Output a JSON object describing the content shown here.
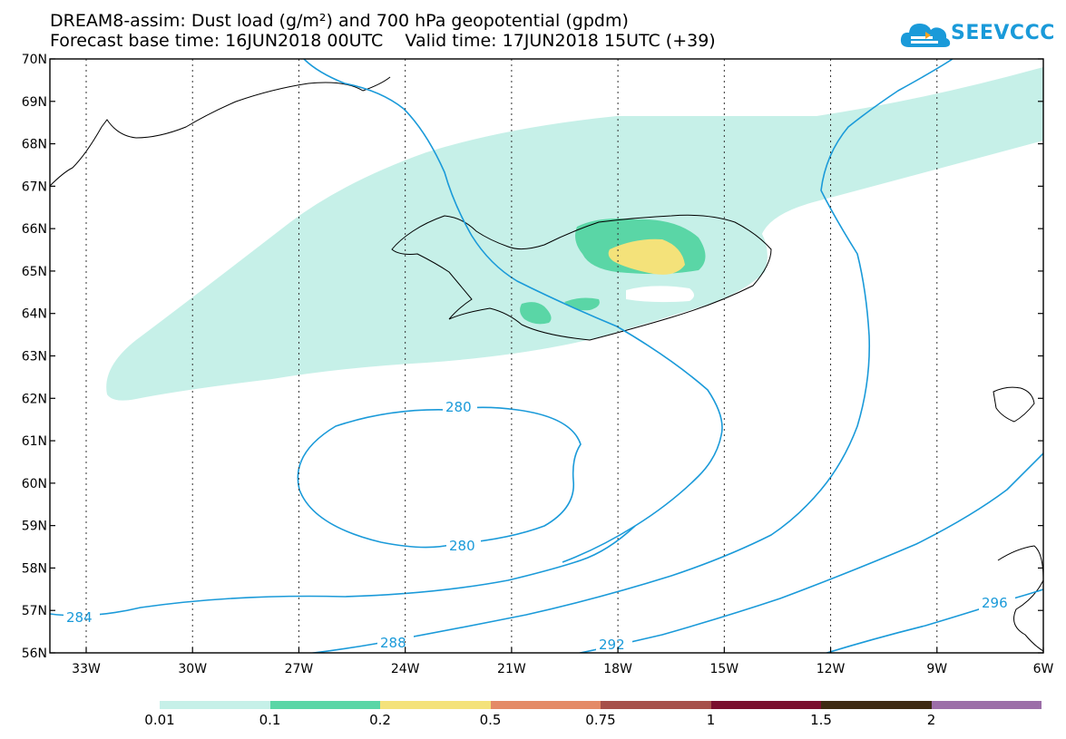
{
  "title": {
    "line1": "DREAM8-assim: Dust load (g/m²) and 700 hPa geopotential (gpdm)",
    "line2": "Forecast base time: 16JUN2018 00UTC    Valid time: 17JUN2018 15UTC (+39)"
  },
  "logo": {
    "text": "SEEVCCC",
    "icon": "cloud-logo-icon",
    "color": "#1a9ad9"
  },
  "map": {
    "lat_labels": [
      "70N",
      "69N",
      "68N",
      "67N",
      "66N",
      "65N",
      "64N",
      "63N",
      "62N",
      "61N",
      "60N",
      "59N",
      "58N",
      "57N",
      "56N"
    ],
    "lon_labels": [
      "33W",
      "30W",
      "27W",
      "24W",
      "21W",
      "18W",
      "15W",
      "12W",
      "9W",
      "6W"
    ],
    "contour_color": "#1a9ad9",
    "contour_labels": {
      "c280_top": "280",
      "c280_bottom": "280",
      "c284": "284",
      "c288": "288",
      "c292": "292",
      "c296": "296"
    },
    "dust_colors": {
      "level_0_01": "#c6f0e8",
      "level_0_1": "#5ad6a6",
      "level_0_2": "#f4e27a"
    }
  },
  "colorbar": {
    "colors": [
      "#c6f0e8",
      "#5ad6a6",
      "#f4e27a",
      "#e48a66",
      "#a6504a",
      "#7a0f2e",
      "#3e2a12",
      "#9c6ea8"
    ],
    "labels": [
      "0.01",
      "0.1",
      "0.2",
      "0.5",
      "0.75",
      "1",
      "1.5",
      "2"
    ]
  }
}
